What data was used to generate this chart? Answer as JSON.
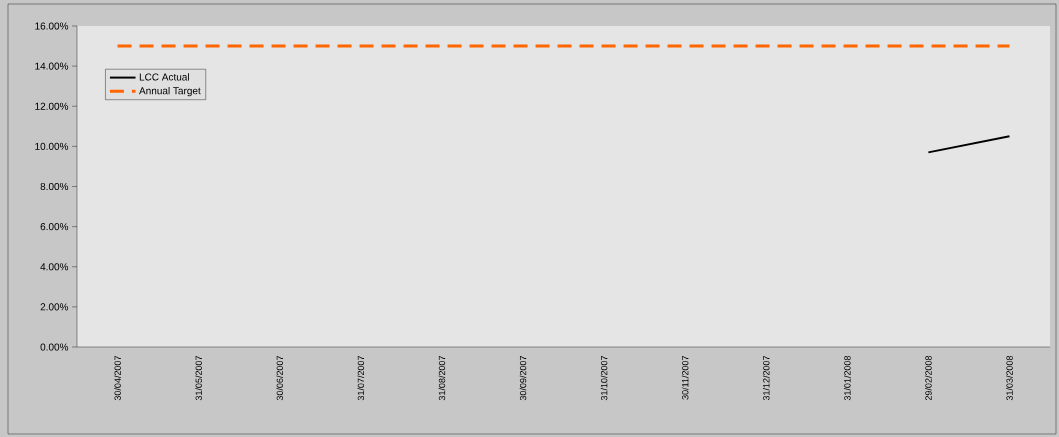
{
  "chart_data": {
    "type": "line",
    "categories": [
      "30/04/2007",
      "31/05/2007",
      "30/06/2007",
      "31/07/2007",
      "31/08/2007",
      "30/09/2007",
      "31/10/2007",
      "30/11/2007",
      "31/12/2007",
      "31/01/2008",
      "29/02/2008",
      "31/03/2008"
    ],
    "series": [
      {
        "name": "LCC Actual",
        "color": "#000000",
        "line_style": "solid",
        "values": [
          null,
          null,
          null,
          null,
          null,
          null,
          null,
          null,
          null,
          null,
          9.7,
          10.5
        ]
      },
      {
        "name": "Annual Target",
        "color": "#ff6600",
        "line_style": "dashed",
        "values": [
          15,
          15,
          15,
          15,
          15,
          15,
          15,
          15,
          15,
          15,
          15,
          15
        ]
      }
    ],
    "ylim": [
      0,
      16
    ],
    "yticks": [
      {
        "value": 0,
        "label": "0.00%"
      },
      {
        "value": 2,
        "label": "2.00%"
      },
      {
        "value": 4,
        "label": "4.00%"
      },
      {
        "value": 6,
        "label": "6.00%"
      },
      {
        "value": 8,
        "label": "8.00%"
      },
      {
        "value": 10,
        "label": "10.00%"
      },
      {
        "value": 12,
        "label": "12.00%"
      },
      {
        "value": 14,
        "label": "14.00%"
      },
      {
        "value": 16,
        "label": "16.00%"
      }
    ],
    "legend": "top left",
    "grid": false
  }
}
